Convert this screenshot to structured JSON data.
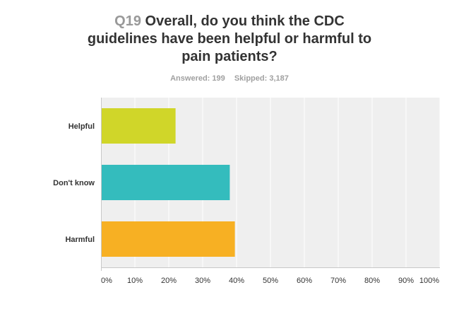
{
  "question": {
    "number": "Q19",
    "text": "Overall, do you think the CDC guidelines have been helpful or harmful to pain patients?"
  },
  "stats": {
    "answered": "Answered: 199",
    "skipped": "Skipped: 3,187"
  },
  "colors": {
    "Helpful": "#d0d629",
    "Don't know": "#34bcbd",
    "Harmful": "#f7b023",
    "plot_bg": "#efefef",
    "grid": "#ffffff"
  },
  "chart_data": {
    "type": "bar",
    "orientation": "horizontal",
    "categories": [
      "Helpful",
      "Don't know",
      "Harmful"
    ],
    "values": [
      22,
      38,
      39.5
    ],
    "unit": "%",
    "xlim": [
      0,
      100
    ],
    "x_ticks": [
      "0%",
      "10%",
      "20%",
      "30%",
      "40%",
      "50%",
      "60%",
      "70%",
      "80%",
      "90%",
      "100%"
    ],
    "grid": true
  }
}
